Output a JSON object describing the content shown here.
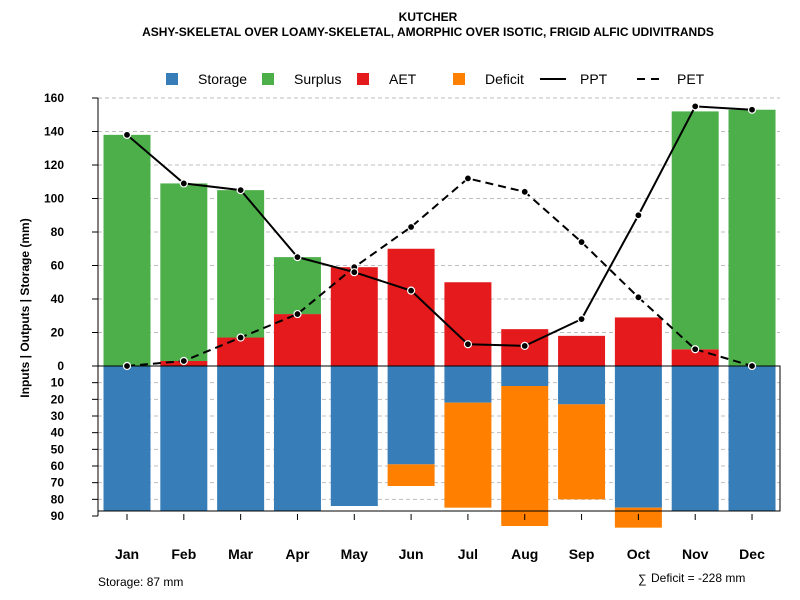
{
  "title": "KUTCHER",
  "subtitle": "ASHY-SKELETAL OVER LOAMY-SKELETAL, AMORPHIC OVER ISOTIC, FRIGID ALFIC UDIVITRANDS",
  "footer": {
    "storage_text": "Storage: 87 mm",
    "deficit_symbol": "∑",
    "deficit_text": "Deficit = -228 mm"
  },
  "colors": {
    "storage": "#377EB8",
    "surplus": "#4DAF4A",
    "aet": "#E41A1C",
    "deficit": "#FF7F00",
    "ppt": "#000000",
    "pet": "#000000",
    "grid": "#BEBEBE"
  },
  "legend": [
    {
      "key": "storage",
      "label": "Storage",
      "kind": "box"
    },
    {
      "key": "surplus",
      "label": "Surplus",
      "kind": "box"
    },
    {
      "key": "aet",
      "label": "AET",
      "kind": "box"
    },
    {
      "key": "deficit",
      "label": "Deficit",
      "kind": "box"
    },
    {
      "key": "ppt",
      "label": "PPT",
      "kind": "solid-line"
    },
    {
      "key": "pet",
      "label": "PET",
      "kind": "dashed-line"
    }
  ],
  "chart_data": {
    "type": "bar",
    "title": "KUTCHER",
    "subtitle": "ASHY-SKELETAL OVER LOAMY-SKELETAL, AMORPHIC OVER ISOTIC, FRIGID ALFIC UDIVITRANDS",
    "xlabel": "",
    "ylabel": "Inputs | Outputs | Storage     (mm)",
    "categories": [
      "Jan",
      "Feb",
      "Mar",
      "Apr",
      "May",
      "Jun",
      "Jul",
      "Aug",
      "Sep",
      "Oct",
      "Nov",
      "Dec"
    ],
    "ylim_upper": [
      0,
      160
    ],
    "ylim_lower": [
      0,
      90
    ],
    "yticks_upper": [
      0,
      20,
      40,
      60,
      80,
      100,
      120,
      140,
      160
    ],
    "yticks_lower": [
      10,
      20,
      30,
      40,
      50,
      60,
      70,
      80,
      90
    ],
    "grid": true,
    "storage_capacity": 87,
    "series": [
      {
        "name": "AET",
        "key": "aet",
        "values": [
          0,
          3,
          17,
          31,
          59,
          70,
          50,
          22,
          18,
          29,
          10,
          0
        ]
      },
      {
        "name": "Surplus",
        "key": "surplus",
        "values": [
          138,
          106,
          88,
          34,
          0,
          0,
          0,
          0,
          0,
          0,
          142,
          153
        ]
      },
      {
        "name": "Storage",
        "key": "storage",
        "values": [
          87,
          87,
          87,
          87,
          84,
          59,
          22,
          12,
          23,
          85,
          87,
          87
        ]
      },
      {
        "name": "Deficit",
        "key": "deficit",
        "values": [
          0,
          0,
          0,
          0,
          0,
          13,
          63,
          84,
          57,
          12,
          0,
          0
        ]
      },
      {
        "name": "PPT",
        "key": "ppt",
        "values": [
          138,
          109,
          105,
          65,
          56,
          45,
          13,
          12,
          28,
          90,
          155,
          153
        ]
      },
      {
        "name": "PET",
        "key": "pet",
        "values": [
          0,
          3,
          17,
          31,
          59,
          83,
          112,
          104,
          74,
          41,
          10,
          0
        ]
      }
    ]
  }
}
